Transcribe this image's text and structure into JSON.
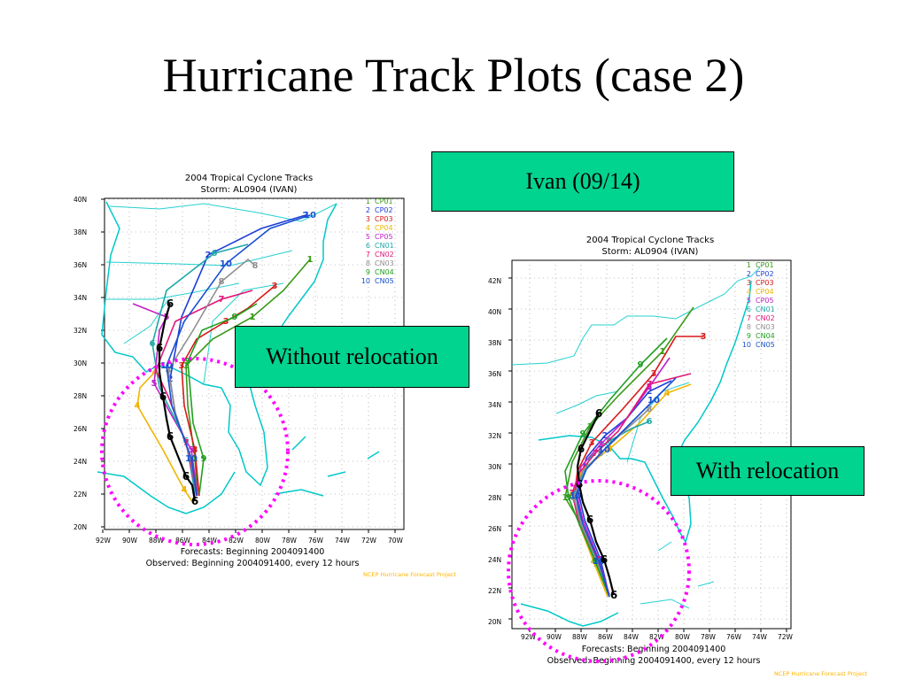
{
  "slide": {
    "title": "Hurricane Track Plots (case 2)"
  },
  "boxes": {
    "storm": "Ivan (09/14)",
    "without": "Without relocation",
    "with": "With relocation"
  },
  "maps": [
    {
      "id": "without",
      "title1": "2004 Tropical Cyclone Tracks",
      "title2": "Storm: AL0904 (IVAN)",
      "lat_labels": [
        "40N",
        "38N",
        "36N",
        "34N",
        "32N",
        "30N",
        "28N",
        "26N",
        "24N",
        "22N",
        "20N"
      ],
      "lon_labels": [
        "92W",
        "90W",
        "88W",
        "86W",
        "84W",
        "82W",
        "80W",
        "78W",
        "76W",
        "74W",
        "72W",
        "70W"
      ],
      "footer1": "Forecasts: Beginning 2004091400",
      "footer2": "Observed: Beginning 2004091400, every 12 hours",
      "credit": "NCEP Hurricane Forecast Project"
    },
    {
      "id": "with",
      "title1": "2004 Tropical Cyclone Tracks",
      "title2": "Storm: AL0904 (IVAN)",
      "lat_labels": [
        "42N",
        "40N",
        "38N",
        "36N",
        "34N",
        "32N",
        "30N",
        "28N",
        "26N",
        "24N",
        "22N",
        "20N"
      ],
      "lon_labels": [
        "92W",
        "90W",
        "88W",
        "86W",
        "84W",
        "82W",
        "80W",
        "78W",
        "76W",
        "74W",
        "72W"
      ],
      "footer1": "Forecasts: Beginning 2004091400",
      "footer2": "Observed: Beginning 2004091400, every 12 hours",
      "credit": "NCEP Hurricane Forecast Project"
    }
  ],
  "legend": [
    {
      "num": "1",
      "name": "CP01",
      "color": "#3a9a1a"
    },
    {
      "num": "2",
      "name": "CP02",
      "color": "#1f3fd8"
    },
    {
      "num": "3",
      "name": "CP03",
      "color": "#d81818"
    },
    {
      "num": "4",
      "name": "CP04",
      "color": "#f0b400"
    },
    {
      "num": "5",
      "name": "CP05",
      "color": "#c020c8"
    },
    {
      "num": "6",
      "name": "CN01",
      "color": "#20a8a8"
    },
    {
      "num": "7",
      "name": "CN02",
      "color": "#e01878"
    },
    {
      "num": "8",
      "name": "CN03",
      "color": "#909090"
    },
    {
      "num": "9",
      "name": "CN04",
      "color": "#20a020"
    },
    {
      "num": "10",
      "name": "CN05",
      "color": "#1850d0"
    }
  ],
  "colors": {
    "box_green": "#00d48e",
    "coast": "#00c8c8",
    "observed": "#000000",
    "circle": "#ff00ff"
  }
}
